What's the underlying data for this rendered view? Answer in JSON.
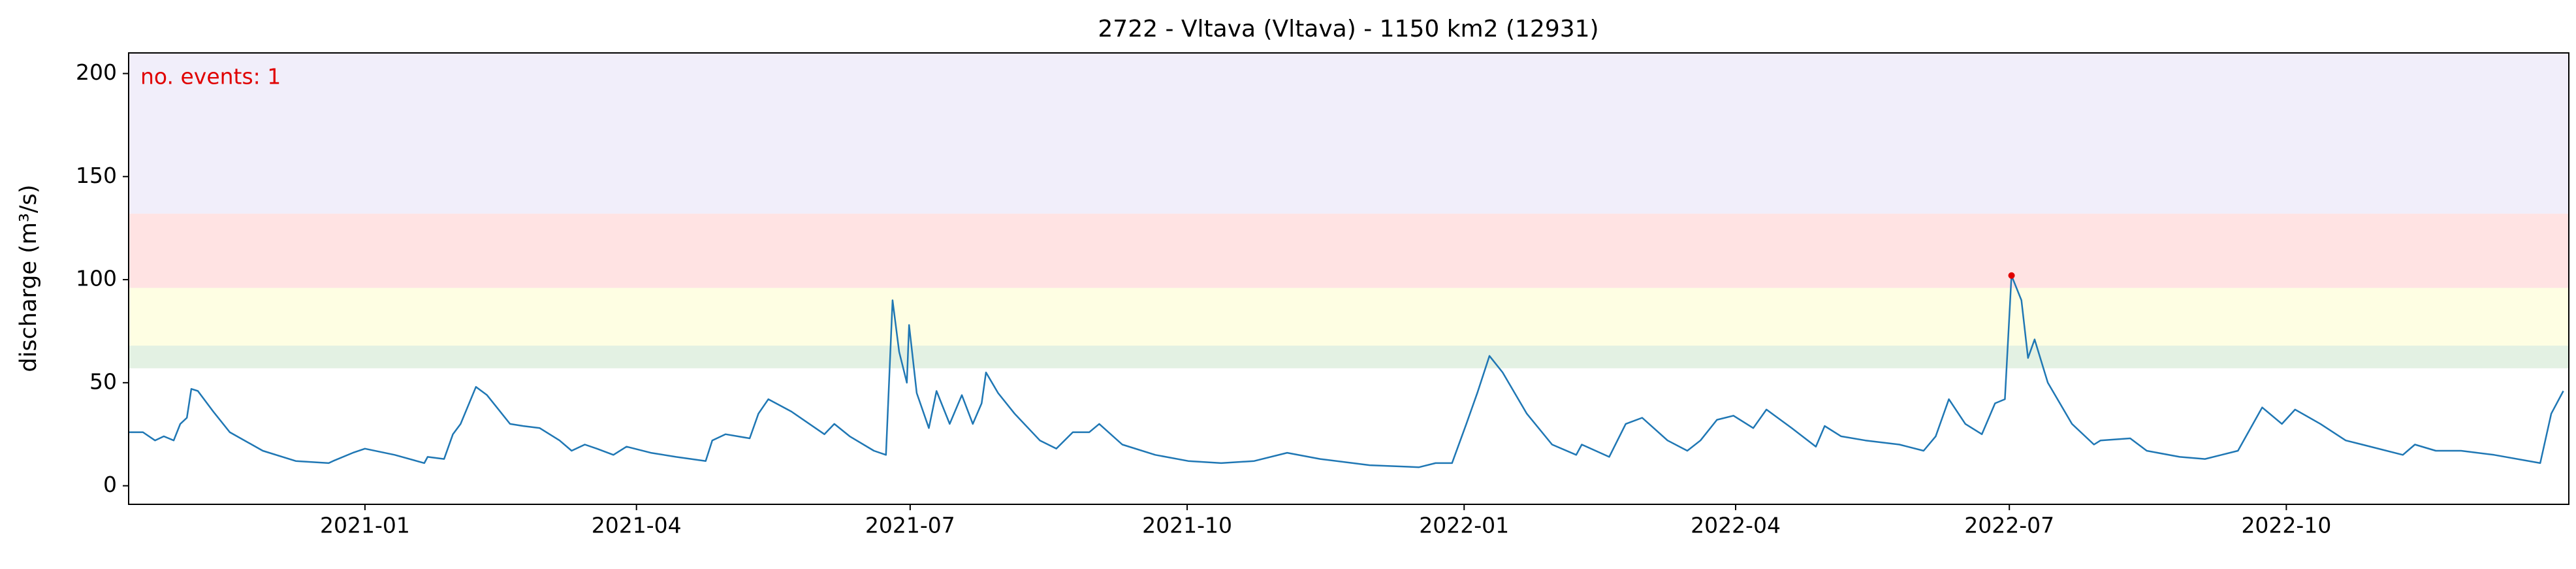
{
  "chart_data": {
    "type": "line",
    "title": "2722 - Vltava (Vltava) - 1150 km2 (12931)",
    "y_label": "discharge (m³/s)",
    "annotation": "no. events: 1",
    "annotation_color": "#e00000",
    "xlim": [
      2020.785,
      2023.005
    ],
    "xticks": [
      {
        "value": 2021.0,
        "label": "2021-01"
      },
      {
        "value": 2021.247,
        "label": "2021-04"
      },
      {
        "value": 2021.496,
        "label": "2021-07"
      },
      {
        "value": 2021.748,
        "label": "2021-10"
      },
      {
        "value": 2022.0,
        "label": "2022-01"
      },
      {
        "value": 2022.247,
        "label": "2022-04"
      },
      {
        "value": 2022.496,
        "label": "2022-07"
      },
      {
        "value": 2022.748,
        "label": "2022-10"
      }
    ],
    "ylim": [
      -9,
      210
    ],
    "yticks": [
      0,
      50,
      100,
      150,
      200
    ],
    "bands": [
      {
        "from": 57,
        "to": 68,
        "color": "#e3f1e3"
      },
      {
        "from": 68,
        "to": 96,
        "color": "#fefee3"
      },
      {
        "from": 96,
        "to": 132,
        "color": "#ffe3e3"
      },
      {
        "from": 132,
        "to": 210,
        "color": "#f1eefa"
      }
    ],
    "series": [
      {
        "color": "#1f77b4",
        "x": [
          2020.785,
          2020.798,
          2020.809,
          2020.817,
          2020.826,
          2020.832,
          2020.838,
          2020.842,
          2020.848,
          2020.862,
          2020.877,
          2020.907,
          2020.937,
          2020.967,
          2020.971,
          2020.989,
          2021.0,
          2021.027,
          2021.054,
          2021.057,
          2021.072,
          2021.08,
          2021.087,
          2021.101,
          2021.111,
          2021.132,
          2021.144,
          2021.159,
          2021.177,
          2021.188,
          2021.2,
          2021.211,
          2021.226,
          2021.238,
          2021.26,
          2021.283,
          2021.31,
          2021.316,
          2021.328,
          2021.35,
          2021.358,
          2021.367,
          2021.388,
          2021.418,
          2021.427,
          2021.441,
          2021.463,
          2021.474,
          2021.48,
          2021.486,
          2021.493,
          2021.495,
          2021.502,
          2021.513,
          2021.52,
          2021.532,
          2021.543,
          2021.553,
          2021.561,
          2021.565,
          2021.576,
          2021.591,
          2021.614,
          2021.629,
          2021.644,
          2021.659,
          2021.668,
          2021.689,
          2021.719,
          2021.749,
          2021.779,
          2021.809,
          2021.839,
          2021.869,
          2021.914,
          2021.959,
          2021.974,
          2021.989,
          2022.002,
          2022.012,
          2022.023,
          2022.035,
          2022.057,
          2022.08,
          2022.102,
          2022.107,
          2022.132,
          2022.147,
          2022.162,
          2022.185,
          2022.203,
          2022.215,
          2022.23,
          2022.245,
          2022.263,
          2022.275,
          2022.298,
          2022.32,
          2022.328,
          2022.343,
          2022.365,
          2022.396,
          2022.418,
          2022.429,
          2022.441,
          2022.456,
          2022.471,
          2022.483,
          2022.492,
          2022.498,
          2022.507,
          2022.513,
          2022.519,
          2022.531,
          2022.553,
          2022.573,
          2022.579,
          2022.606,
          2022.621,
          2022.651,
          2022.674,
          2022.689,
          2022.704,
          2022.726,
          2022.744,
          2022.756,
          2022.779,
          2022.802,
          2022.817,
          2022.854,
          2022.865,
          2022.884,
          2022.907,
          2022.937,
          2022.979,
          2022.989,
          2023.0
        ],
        "values": [
          26,
          26,
          22,
          24,
          22,
          30,
          33,
          47,
          46,
          36,
          26,
          17,
          12,
          11,
          12,
          16,
          18,
          15,
          11,
          14,
          13,
          25,
          30,
          48,
          44,
          30,
          29,
          28,
          22,
          17,
          20,
          18,
          15,
          19,
          16,
          14,
          12,
          22,
          25,
          23,
          35,
          42,
          36,
          25,
          30,
          24,
          17,
          15,
          90,
          65,
          50,
          78,
          45,
          28,
          46,
          30,
          44,
          30,
          40,
          55,
          45,
          35,
          22,
          18,
          26,
          26,
          30,
          20,
          15,
          12,
          11,
          12,
          16,
          13,
          10,
          9,
          11,
          11,
          30,
          45,
          63,
          55,
          35,
          20,
          15,
          20,
          14,
          30,
          33,
          22,
          17,
          22,
          32,
          34,
          28,
          37,
          28,
          19,
          29,
          24,
          22,
          20,
          17,
          24,
          42,
          30,
          25,
          40,
          42,
          102,
          90,
          62,
          71,
          50,
          30,
          20,
          22,
          23,
          17,
          14,
          13,
          15,
          17,
          38,
          30,
          37,
          30,
          22,
          20,
          15,
          20,
          17,
          17,
          15,
          11,
          35,
          46
        ]
      }
    ],
    "events": {
      "color": "#e00000",
      "x": [
        2022.498
      ],
      "values": [
        102
      ]
    }
  }
}
